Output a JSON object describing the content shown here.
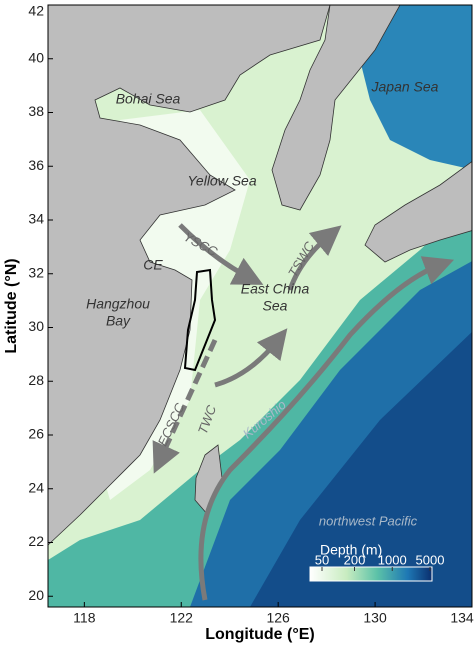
{
  "map": {
    "x_axis": {
      "label": "Longitude (°E)",
      "lim": [
        116.5,
        134
      ],
      "ticks": [
        118,
        122,
        126,
        130,
        134
      ]
    },
    "y_axis": {
      "label": "Latitude (°N)",
      "lim": [
        19.6,
        42
      ],
      "ticks": [
        20,
        22,
        24,
        26,
        28,
        30,
        32,
        34,
        36,
        38,
        40,
        42
      ]
    },
    "labels": [
      {
        "text": "Bohai Sea"
      },
      {
        "text": "Yellow Sea"
      },
      {
        "text": "Japan Sea"
      },
      {
        "lines": [
          "East China",
          "Sea"
        ]
      },
      {
        "lines": [
          "Hangzhou",
          "Bay"
        ]
      },
      {
        "text": "CE"
      },
      {
        "text": "YSCC"
      },
      {
        "text": "TSWC"
      },
      {
        "text": "TWC"
      },
      {
        "text": "ECSCC"
      },
      {
        "text": "Kuroshio"
      },
      {
        "text": "northwest Pacific"
      }
    ],
    "colorbar": {
      "label": "Depth (m)",
      "ticks": [
        50,
        200,
        1000,
        5000
      ]
    }
  }
}
